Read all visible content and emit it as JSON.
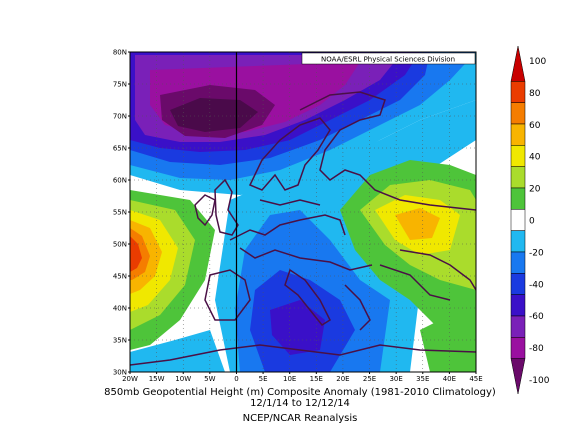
{
  "map": {
    "credit": "NOAA/ESRL Physical Sciences Division",
    "lat_labels": [
      "80N",
      "75N",
      "70N",
      "65N",
      "60N",
      "55N",
      "50N",
      "45N",
      "40N",
      "35N",
      "30N"
    ],
    "lon_labels": [
      "20W",
      "15W",
      "10W",
      "5W",
      "0",
      "5E",
      "10E",
      "15E",
      "20E",
      "25E",
      "30E",
      "35E",
      "40E",
      "45E"
    ],
    "lon_range": [
      -20,
      45
    ],
    "lat_range": [
      30,
      80
    ]
  },
  "colorbar": {
    "labels": [
      "100",
      "80",
      "60",
      "40",
      "20",
      "0",
      "-20",
      "-40",
      "-60",
      "-80",
      "-100"
    ],
    "colors": [
      "#c80000",
      "#ea3c00",
      "#f57d00",
      "#f8b400",
      "#f0e800",
      "#aadc2c",
      "#4ec43a",
      "#ffffff",
      "#20b8f0",
      "#1878f0",
      "#1a3ae0",
      "#3a10c8",
      "#7a20b8",
      "#9a10a0",
      "#6a0a6a"
    ]
  },
  "caption": {
    "line1": "850mb Geopotential Height (m) Composite Anomaly (1981-2010 Climatology)",
    "line2": "12/1/14  to 12/12/14",
    "line3": "NCEP/NCAR Reanalysis"
  }
}
